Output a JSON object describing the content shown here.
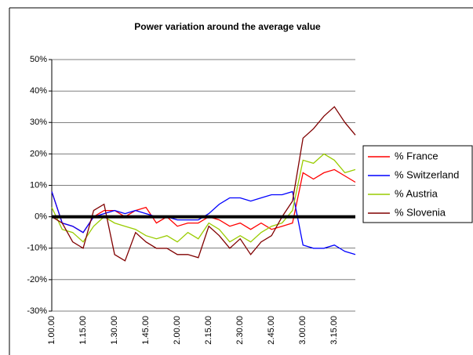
{
  "chart_data": {
    "type": "line",
    "title": "Power variation around the average value",
    "categories": [
      "1.00.00",
      null,
      null,
      "1.15.00",
      null,
      null,
      "1.30.00",
      null,
      null,
      "1.45.00",
      null,
      null,
      "2.00.00",
      null,
      null,
      "2.15.00",
      null,
      null,
      "2.30.00",
      null,
      null,
      "2.45.00",
      null,
      null,
      "3.00.00",
      null,
      null,
      "3.15.00",
      null,
      null
    ],
    "series": [
      {
        "name": "% France",
        "color": "#ff0000",
        "values": [
          8,
          -2,
          -3,
          -5,
          0,
          2,
          2,
          0,
          2,
          3,
          -2,
          0,
          -3,
          -2,
          -2,
          0,
          -1,
          -3,
          -2,
          -4,
          -2,
          -4,
          -3,
          -2,
          14,
          12,
          14,
          15,
          13,
          11
        ]
      },
      {
        "name": "% Switzerland",
        "color": "#0000ff",
        "values": [
          8,
          -2,
          -3,
          -5,
          0,
          1,
          2,
          1,
          2,
          1,
          0,
          0,
          -1,
          -1,
          -1,
          1,
          4,
          6,
          6,
          5,
          6,
          7,
          7,
          8,
          -9,
          -10,
          -10,
          -9,
          -11,
          -12
        ]
      },
      {
        "name": "% Austria",
        "color": "#99cc00",
        "values": [
          3,
          -4,
          -5,
          -8,
          -3,
          0,
          -2,
          -3,
          -4,
          -6,
          -7,
          -6,
          -8,
          -5,
          -7,
          -2,
          -4,
          -8,
          -6,
          -8,
          -5,
          -3,
          -2,
          2,
          18,
          17,
          20,
          18,
          14,
          15
        ]
      },
      {
        "name": "% Slovenia",
        "color": "#800000",
        "values": [
          0,
          -2,
          -8,
          -10,
          2,
          4,
          -12,
          -14,
          -5,
          -8,
          -10,
          -10,
          -12,
          -12,
          -13,
          -3,
          -6,
          -10,
          -7,
          -12,
          -8,
          -6,
          0,
          5,
          25,
          28,
          32,
          35,
          30,
          26
        ]
      }
    ],
    "ylim": [
      -30,
      50
    ],
    "yticks": [
      {
        "value": -30,
        "label": "-30%"
      },
      {
        "value": -20,
        "label": "-20%"
      },
      {
        "value": -10,
        "label": "-10%"
      },
      {
        "value": 0,
        "label": "0%"
      },
      {
        "value": 10,
        "label": "10%"
      },
      {
        "value": 20,
        "label": "20%"
      },
      {
        "value": 30,
        "label": "30%"
      },
      {
        "value": 40,
        "label": "40%"
      },
      {
        "value": 50,
        "label": "50%"
      }
    ],
    "grid": true,
    "legend": "right"
  }
}
